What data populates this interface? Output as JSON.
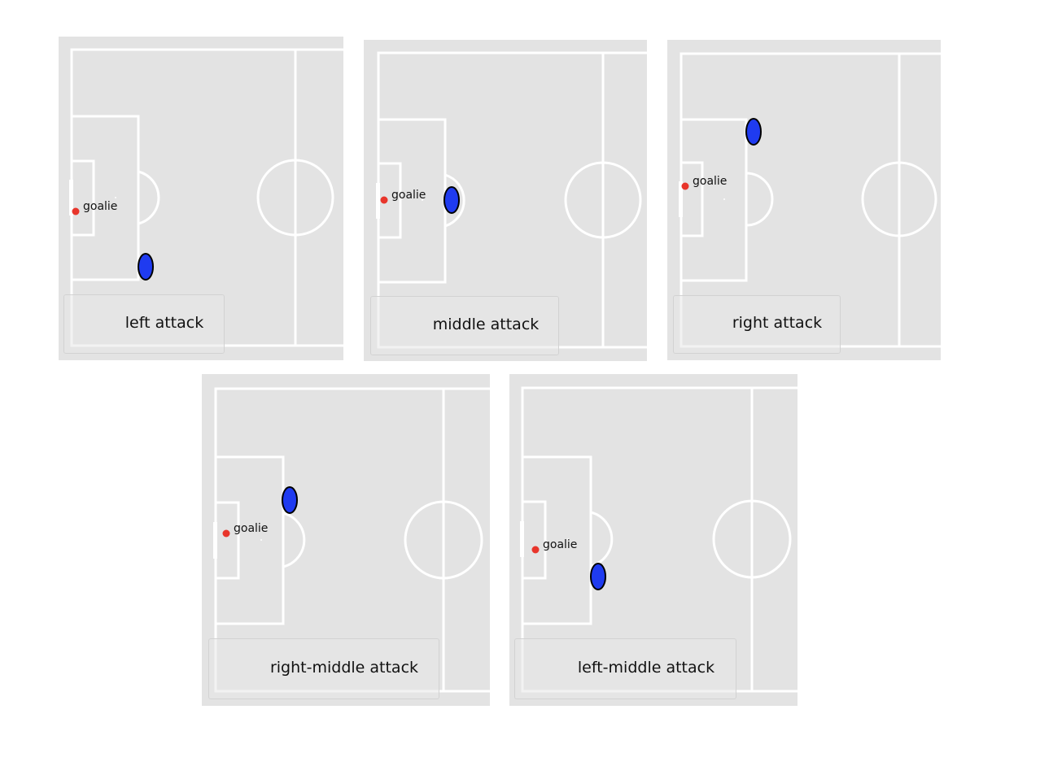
{
  "colors": {
    "field": "#e3e3e3",
    "lines": "#ffffff",
    "goalie": "#e8352b",
    "ball_fill": "#1f3bf0",
    "ball_stroke": "#000000"
  },
  "panels": [
    {
      "caption": "left attack",
      "goalie_label": "goalie"
    },
    {
      "caption": "middle attack",
      "goalie_label": "goalie"
    },
    {
      "caption": "right attack",
      "goalie_label": "goalie"
    },
    {
      "caption": "right-middle attack",
      "goalie_label": "goalie"
    },
    {
      "caption": "left-middle attack",
      "goalie_label": "goalie"
    }
  ]
}
